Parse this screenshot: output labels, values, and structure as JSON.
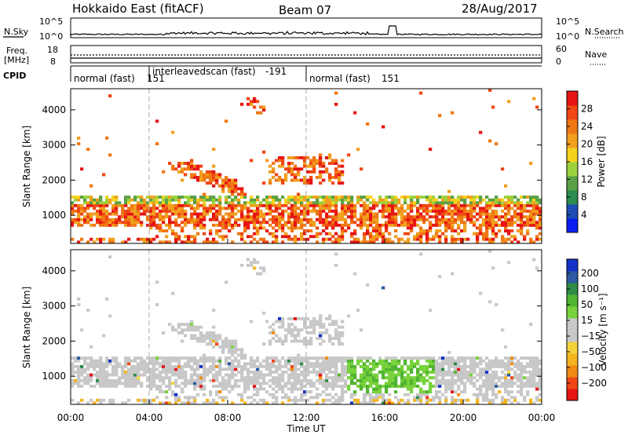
{
  "header": {
    "station": "Hokkaido East (fitACF)",
    "beam": "Beam 07",
    "date": "28/Aug/2017"
  },
  "side_labels": {
    "nsky": "N.Sky",
    "nsearch": "N.Search",
    "freq_line1": "Freq.",
    "freq_line2": "[MHz]",
    "nave": "Nave",
    "cpid": "CPID"
  },
  "noise_axis": {
    "left_top": "10^5",
    "left_bottom": "10^0",
    "right_top": "10^5",
    "right_bottom": "10^0"
  },
  "freq_axis": {
    "left_top": "18",
    "left_bottom": "8",
    "right_top": "60",
    "right_bottom": "0"
  },
  "cpid_segments": [
    {
      "text": "normal (fast)",
      "id": "151"
    },
    {
      "text": "interleavedscan (fast)",
      "id": "-191"
    },
    {
      "text": "normal (fast)",
      "id": "151"
    }
  ],
  "colors": {
    "power": [
      "#0a1ef0",
      "#1e4bb4",
      "#2d8c50",
      "#5aa046",
      "#9bd23c",
      "#f5d21e",
      "#f0a01e",
      "#f07814",
      "#f04614",
      "#e61414"
    ],
    "velocity": [
      "#e61414",
      "#f04614",
      "#f08c14",
      "#f5b41e",
      "#f5d23c",
      "#c8c8c8",
      "#c8c8c8",
      "#78d23c",
      "#50b432",
      "#2d8c46",
      "#2d5aa0",
      "#1432c8"
    ]
  },
  "chart_data": [
    {
      "type": "heatmap",
      "name": "power",
      "ylabel": "Slant Range [km]",
      "yticks": [
        1000,
        2000,
        3000,
        4000
      ],
      "ylim": [
        200,
        4600
      ],
      "xlim_hours": [
        0,
        24
      ],
      "colorbar_label": "Power [dB]",
      "colorbar_ticks": [
        "4",
        "8",
        "12",
        "16",
        "20",
        "24",
        "28"
      ],
      "colorbar_range": [
        0,
        32
      ]
    },
    {
      "type": "heatmap",
      "name": "velocity",
      "ylabel": "Slant Range [km]",
      "yticks": [
        1000,
        2000,
        3000,
        4000
      ],
      "ylim": [
        200,
        4600
      ],
      "xlim_hours": [
        0,
        24
      ],
      "colorbar_label": "Velocity [m s⁻¹]",
      "colorbar_ticks": [
        "200",
        "100",
        "50",
        "15",
        "−15",
        "−50",
        "−100",
        "−200"
      ]
    }
  ],
  "x_axis": {
    "label": "Time UT",
    "ticks": [
      "00:00",
      "04:00",
      "08:00",
      "12:00",
      "16:00",
      "20:00",
      "00:00"
    ]
  }
}
